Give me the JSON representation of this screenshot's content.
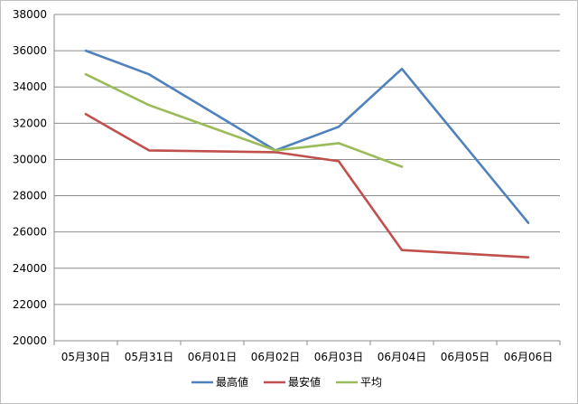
{
  "chart_data": {
    "type": "line",
    "categories": [
      "05月30日",
      "05月31日",
      "06月01日",
      "06月02日",
      "06月03日",
      "06月04日",
      "06月05日",
      "06月06日"
    ],
    "series": [
      {
        "name": "最高値",
        "color": "#4f81bd",
        "values": [
          36000,
          34700,
          null,
          30500,
          31800,
          35000,
          null,
          26500
        ]
      },
      {
        "name": "最安値",
        "color": "#c0504d",
        "values": [
          32500,
          30500,
          null,
          30400,
          29900,
          25000,
          null,
          24600
        ]
      },
      {
        "name": "平均",
        "color": "#9bbb59",
        "values": [
          34700,
          33000,
          null,
          30500,
          30900,
          29600,
          null,
          null
        ]
      }
    ],
    "y_ticks": [
      20000,
      22000,
      24000,
      26000,
      28000,
      30000,
      32000,
      34000,
      36000,
      38000
    ],
    "ylim": [
      20000,
      38000
    ],
    "grid": true,
    "legend_position": "bottom"
  }
}
